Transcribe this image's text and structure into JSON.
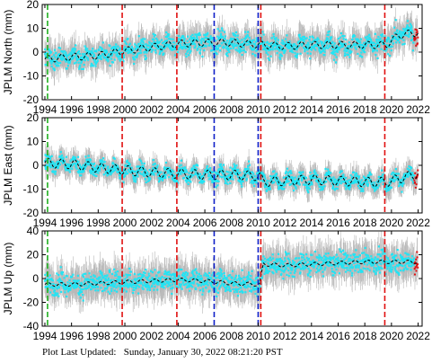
{
  "footer": {
    "label": "Plot Last Updated:",
    "value": "Sunday, January 30, 2022 08:21:20 PST"
  },
  "colors": {
    "error_bars": "#b8b8b8",
    "data_points": "#22e4f4",
    "model_curve": "#000000",
    "recent_points": "#e01010",
    "vline_red": "#e01010",
    "vline_blue": "#1020c8",
    "vline_green": "#20b020",
    "axes": "#000000"
  },
  "chart_data": [
    {
      "type": "scatter",
      "station": "JPLM",
      "ylabel": "JPLM North (mm)",
      "xlim": [
        1993.8,
        2022.3
      ],
      "ylim": [
        -20,
        20
      ],
      "xticks": [
        1994,
        1996,
        1998,
        2000,
        2002,
        2004,
        2006,
        2008,
        2010,
        2012,
        2014,
        2016,
        2018,
        2020,
        2022
      ],
      "yticks": [
        -20,
        -10,
        0,
        10,
        20
      ],
      "grid": false,
      "model_curve": {
        "x": [
          1994.0,
          1996.0,
          1998.0,
          1999.9,
          2002.0,
          2004.0,
          2006.0,
          2007.8,
          2010.3,
          2012.0,
          2014.0,
          2016.0,
          2018.0,
          2019.6,
          2020.5,
          2021.5,
          2022.0
        ],
        "y": [
          -3.0,
          -2.0,
          -1.5,
          0.5,
          2.0,
          3.5,
          4.0,
          4.0,
          3.0,
          2.5,
          3.0,
          3.0,
          3.0,
          3.0,
          7.0,
          8.0,
          8.0
        ],
        "seasonal_amplitude": 1.5
      },
      "data_scatter": 4,
      "error_bar": 5,
      "vertical_lines": [
        {
          "x": 1994.2,
          "color": "green"
        },
        {
          "x": 1999.8,
          "color": "red"
        },
        {
          "x": 2003.9,
          "color": "red"
        },
        {
          "x": 2006.7,
          "color": "blue"
        },
        {
          "x": 2010.0,
          "color": "blue"
        },
        {
          "x": 2010.2,
          "color": "red"
        },
        {
          "x": 2019.5,
          "color": "red"
        }
      ]
    },
    {
      "type": "scatter",
      "station": "JPLM",
      "ylabel": "JPLM East (mm)",
      "xlim": [
        1993.8,
        2022.3
      ],
      "ylim": [
        -20,
        20
      ],
      "xticks": [
        1994,
        1996,
        1998,
        2000,
        2002,
        2004,
        2006,
        2008,
        2010,
        2012,
        2014,
        2016,
        2018,
        2020,
        2022
      ],
      "yticks": [
        -20,
        -10,
        0,
        10,
        20
      ],
      "grid": false,
      "model_curve": {
        "x": [
          1994.0,
          1996.0,
          1998.0,
          1999.9,
          2002.0,
          2004.0,
          2006.0,
          2008.0,
          2010.1,
          2010.4,
          2012.0,
          2014.0,
          2016.0,
          2018.0,
          2019.6,
          2021.0,
          2022.0
        ],
        "y": [
          1.0,
          0.5,
          -1.0,
          -2.0,
          -3.0,
          -3.5,
          -4.0,
          -4.0,
          -4.5,
          -7.0,
          -6.5,
          -6.0,
          -6.5,
          -7.0,
          -7.0,
          -5.0,
          -3.5
        ],
        "seasonal_amplitude": 2.0
      },
      "data_scatter": 3,
      "error_bar": 4,
      "vertical_lines": [
        {
          "x": 1994.2,
          "color": "green"
        },
        {
          "x": 1999.8,
          "color": "red"
        },
        {
          "x": 2003.9,
          "color": "red"
        },
        {
          "x": 2006.7,
          "color": "blue"
        },
        {
          "x": 2010.0,
          "color": "blue"
        },
        {
          "x": 2010.2,
          "color": "red"
        },
        {
          "x": 2019.5,
          "color": "red"
        }
      ]
    },
    {
      "type": "scatter",
      "station": "JPLM",
      "ylabel": "JPLM Up (mm)",
      "xlim": [
        1993.8,
        2022.3
      ],
      "ylim": [
        -40,
        40
      ],
      "xticks": [
        1994,
        1996,
        1998,
        2000,
        2002,
        2004,
        2006,
        2008,
        2010,
        2012,
        2014,
        2016,
        2018,
        2020,
        2022
      ],
      "yticks": [
        -40,
        -20,
        0,
        20,
        40
      ],
      "grid": false,
      "model_curve": {
        "x": [
          1994.0,
          1996.0,
          1998.0,
          1999.9,
          2002.0,
          2004.0,
          2006.0,
          2008.0,
          2010.1,
          2010.4,
          2012.0,
          2014.0,
          2016.0,
          2018.0,
          2019.6,
          2021.0,
          2022.0
        ],
        "y": [
          -5.0,
          -5.0,
          -4.0,
          -3.0,
          -2.0,
          -1.0,
          -2.0,
          -4.0,
          -5.0,
          12.0,
          11.0,
          12.0,
          13.0,
          14.0,
          14.0,
          14.0,
          14.0
        ],
        "seasonal_amplitude": 1.5
      },
      "data_scatter": 9,
      "error_bar": 12,
      "vertical_lines": [
        {
          "x": 1994.2,
          "color": "green"
        },
        {
          "x": 1999.8,
          "color": "red"
        },
        {
          "x": 2003.9,
          "color": "red"
        },
        {
          "x": 2006.7,
          "color": "blue"
        },
        {
          "x": 2010.0,
          "color": "blue"
        },
        {
          "x": 2010.2,
          "color": "red"
        },
        {
          "x": 2019.5,
          "color": "red"
        }
      ]
    }
  ]
}
